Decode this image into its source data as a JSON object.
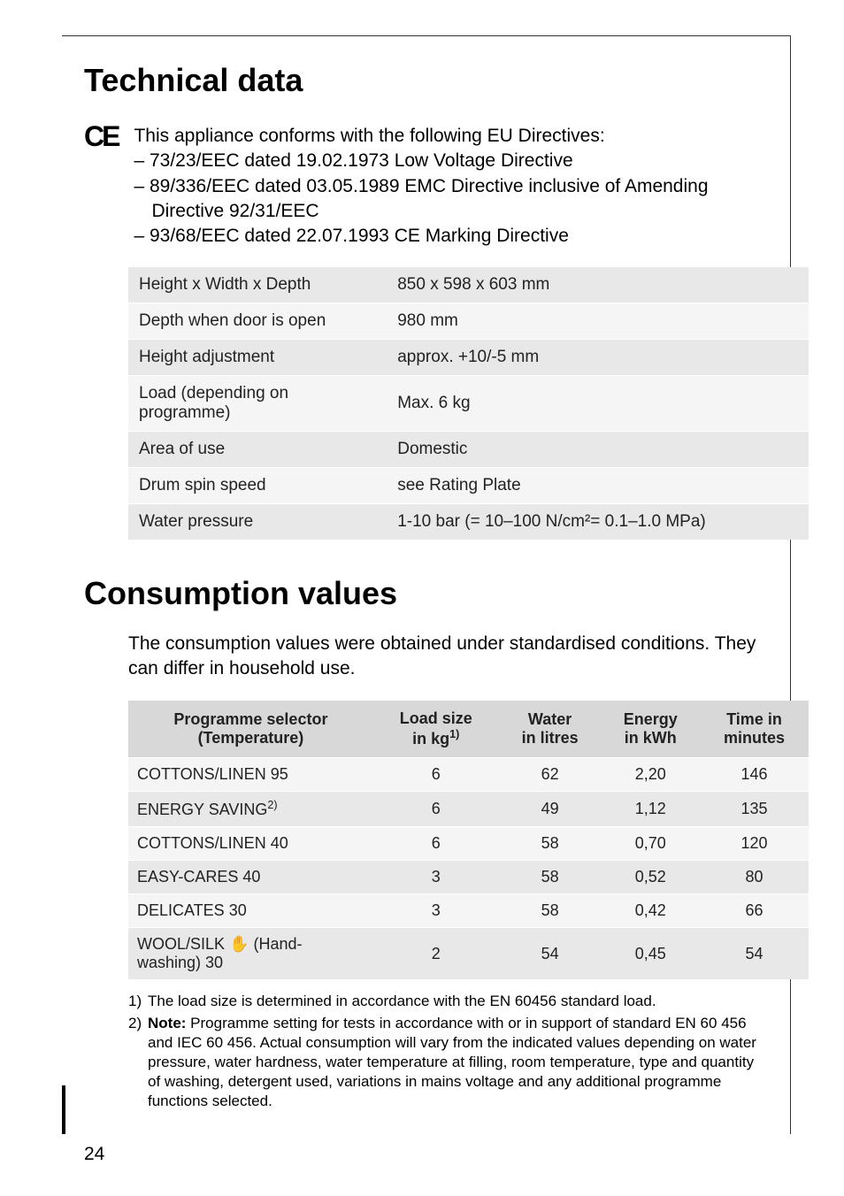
{
  "page_number": "24",
  "section1": {
    "heading": "Technical data",
    "ce_intro": "This appliance conforms with the following EU Directives:",
    "ce_items": [
      "– 73/23/EEC dated 19.02.1973 Low Voltage Directive",
      "– 89/336/EEC dated 03.05.1989 EMC Directive inclusive of Amending",
      "Directive 92/31/EEC",
      "– 93/68/EEC dated 22.07.1993 CE Marking Directive"
    ],
    "specs": [
      {
        "label": "Height x Width x Depth",
        "value": "850 x 598 x 603 mm"
      },
      {
        "label": "Depth when door is open",
        "value": "980 mm"
      },
      {
        "label": "Height adjustment",
        "value": "approx. +10/-5 mm"
      },
      {
        "label": "Load (depending on programme)",
        "value": "Max. 6 kg"
      },
      {
        "label": "Area of use",
        "value": "Domestic"
      },
      {
        "label": "Drum spin speed",
        "value": "see Rating Plate"
      },
      {
        "label": "Water pressure",
        "value": "1-10 bar (= 10–100 N/cm²= 0.1–1.0 MPa)"
      }
    ]
  },
  "section2": {
    "heading": "Consumption values",
    "intro": "The consumption values were obtained under standardised conditions. They can differ in household use.",
    "headers": {
      "col1_line1": "Programme selector",
      "col1_line2": "(Temperature)",
      "col2_line1": "Load size",
      "col2_line2_pre": "in kg",
      "col2_sup": "1)",
      "col3_line1": "Water",
      "col3_line2": "in litres",
      "col4_line1": "Energy",
      "col4_line2": "in kWh",
      "col5_line1": "Time in",
      "col5_line2": "minutes"
    },
    "rows": [
      {
        "prog": "COTTONS/LINEN 95",
        "load": "6",
        "water": "62",
        "energy": "2,20",
        "time": "146",
        "sup": ""
      },
      {
        "prog": "ENERGY SAVING",
        "load": "6",
        "water": "49",
        "energy": "1,12",
        "time": "135",
        "sup": "2)"
      },
      {
        "prog": "COTTONS/LINEN 40",
        "load": "6",
        "water": "58",
        "energy": "0,70",
        "time": "120",
        "sup": ""
      },
      {
        "prog": "EASY-CARES 40",
        "load": "3",
        "water": "58",
        "energy": "0,52",
        "time": "80",
        "sup": ""
      },
      {
        "prog": "DELICATES 30",
        "load": "3",
        "water": "58",
        "energy": "0,42",
        "time": "66",
        "sup": ""
      },
      {
        "prog": "WOOL/SILK",
        "load": "2",
        "water": "54",
        "energy": "0,45",
        "time": "54",
        "sup": "",
        "icon": "hand",
        "suffix": " (Hand-washing) 30"
      }
    ],
    "footnotes": [
      {
        "num": "1)",
        "text": "The load size is determined in accordance with the EN 60456 standard load."
      },
      {
        "num": "2)",
        "text_prefix": "Note:",
        "text": " Programme setting for tests in accordance with or in support of standard EN 60 456 and IEC 60 456. Actual consumption will vary from the indicated values depending on water pressure, water hardness, water temperature at filling, room temperature, type and quantity of washing, detergent used, variations in mains voltage and any additional programme functions selected."
      }
    ]
  },
  "colors": {
    "row_light": "#f5f5f5",
    "row_dark": "#e8e8e8",
    "header_bg": "#d8d8d8",
    "text": "#000000",
    "border": "#333333"
  }
}
